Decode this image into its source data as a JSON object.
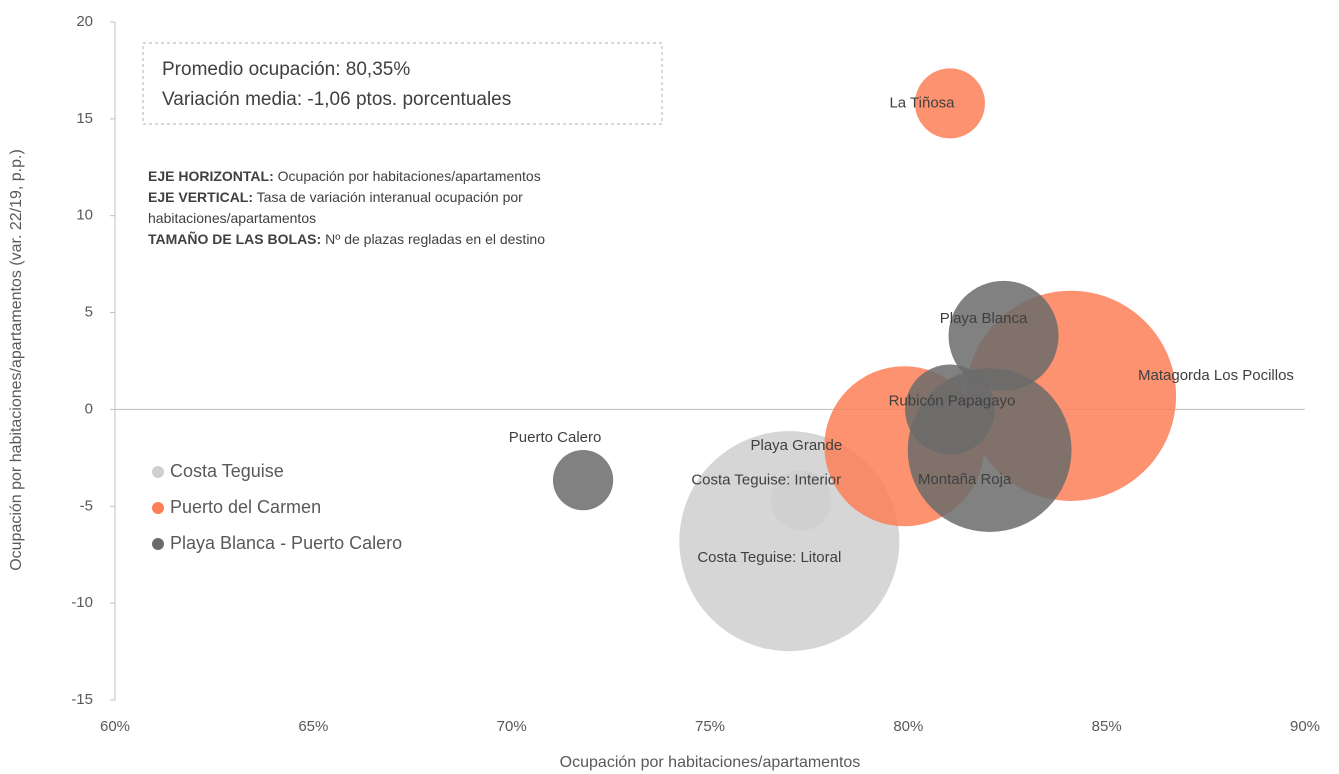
{
  "chart_data": {
    "type": "scatter",
    "x_label": "Ocupación por habitaciones/apartamentos",
    "y_label": "Ocupación por habitaciones/apartamentos (var. 22/19, p.p.)",
    "info": [
      "Promedio ocupación: 80,35%",
      "Variación media: -1,06 ptos. porcentuales"
    ],
    "notes": [
      {
        "label": "EJE HORIZONTAL:",
        "text": "Ocupación por habitaciones/apartamentos"
      },
      {
        "label": "EJE VERTICAL:",
        "text": "Tasa de variación interanual ocupación por habitaciones/apartamentos"
      },
      {
        "label": "TAMAÑO DE LAS BOLAS:",
        "text": "Nº de plazas regladas en el destino"
      }
    ],
    "xlim": [
      60,
      90
    ],
    "xticks": [
      {
        "value": 60,
        "label": "60%"
      },
      {
        "value": 65,
        "label": "65%"
      },
      {
        "value": 70,
        "label": "70%"
      },
      {
        "value": 75,
        "label": "75%"
      },
      {
        "value": 80,
        "label": "80%"
      },
      {
        "value": 85,
        "label": "85%"
      },
      {
        "value": 90,
        "label": "90%"
      }
    ],
    "ylim": [
      -15,
      20
    ],
    "yticks": [
      -15,
      -10,
      -5,
      0,
      5,
      10,
      15,
      20
    ],
    "legend": "left",
    "series": [
      {
        "name": "Costa Teguise",
        "color": "#d0cfcf",
        "labels": [
          "Costa Teguise: Interior",
          "Costa Teguise: Litoral"
        ],
        "x": [
          77.3,
          77.0
        ],
        "values": [
          -4.7,
          -6.8
        ],
        "sizes": [
          1800,
          24000
        ]
      },
      {
        "name": "Puerto del Carmen",
        "color": "#fb7f56",
        "labels": [
          "La Tiñosa",
          "Matagorda Los Pocillos",
          "Playa Grande"
        ],
        "x": [
          81.05,
          84.1,
          79.9
        ],
        "values": [
          15.8,
          0.7,
          -1.9
        ],
        "sizes": [
          2430,
          21900,
          12700
        ]
      },
      {
        "name": "Playa Blanca - Puerto Calero",
        "color": "#6b6b6b",
        "labels": [
          "Playa Blanca",
          "Rubicón Papagayo",
          "Montaña Roja",
          "Puerto Calero"
        ],
        "x": [
          82.4,
          81.05,
          82.05,
          71.8
        ],
        "values": [
          3.8,
          0,
          -2.1,
          -3.65
        ],
        "sizes": [
          6000,
          4000,
          13300,
          1800
        ]
      }
    ]
  }
}
